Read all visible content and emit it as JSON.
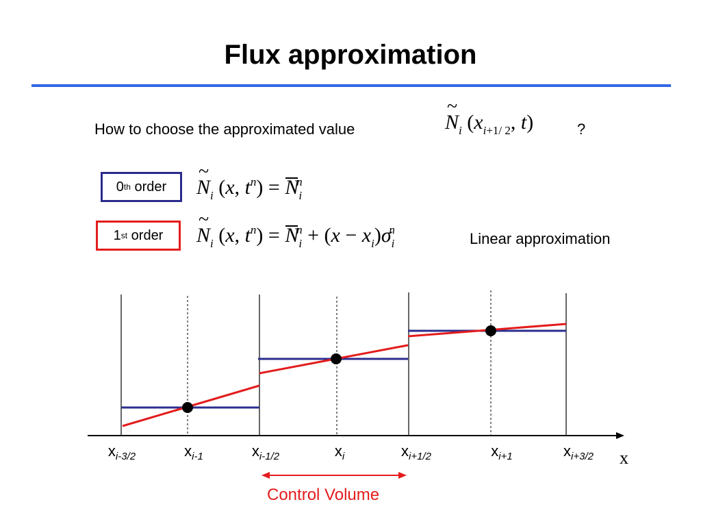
{
  "title": "Flux approximation",
  "question": {
    "text": "How to choose the approximated value",
    "suffix": "?",
    "formula": {
      "symbol": "N",
      "sub": "i",
      "args": "x",
      "arg_sub": "i+1/2",
      "t": "t"
    }
  },
  "orders": [
    {
      "label_num": "0",
      "label_sup": "th",
      "label_rest": "order",
      "color": "#2a2a8c"
    },
    {
      "label_num": "1",
      "label_sup": "st",
      "label_rest": "order",
      "color": "#e31c1c",
      "note": "Linear approximation"
    }
  ],
  "diagram": {
    "ticks": [
      {
        "base": "x",
        "sub": "i-3/2"
      },
      {
        "base": "x",
        "sub": "i-1"
      },
      {
        "base": "x",
        "sub": "i-1/2"
      },
      {
        "base": "x",
        "sub": "i"
      },
      {
        "base": "x",
        "sub": "i+1/2"
      },
      {
        "base": "x",
        "sub": "i+1"
      },
      {
        "base": "x",
        "sub": "i+3/2"
      }
    ],
    "axis_label": "x",
    "control_volume_label": "Control Volume",
    "colors": {
      "constant": "#2b2e8e",
      "linear": "#e31c1c",
      "axis": "#000000"
    }
  }
}
